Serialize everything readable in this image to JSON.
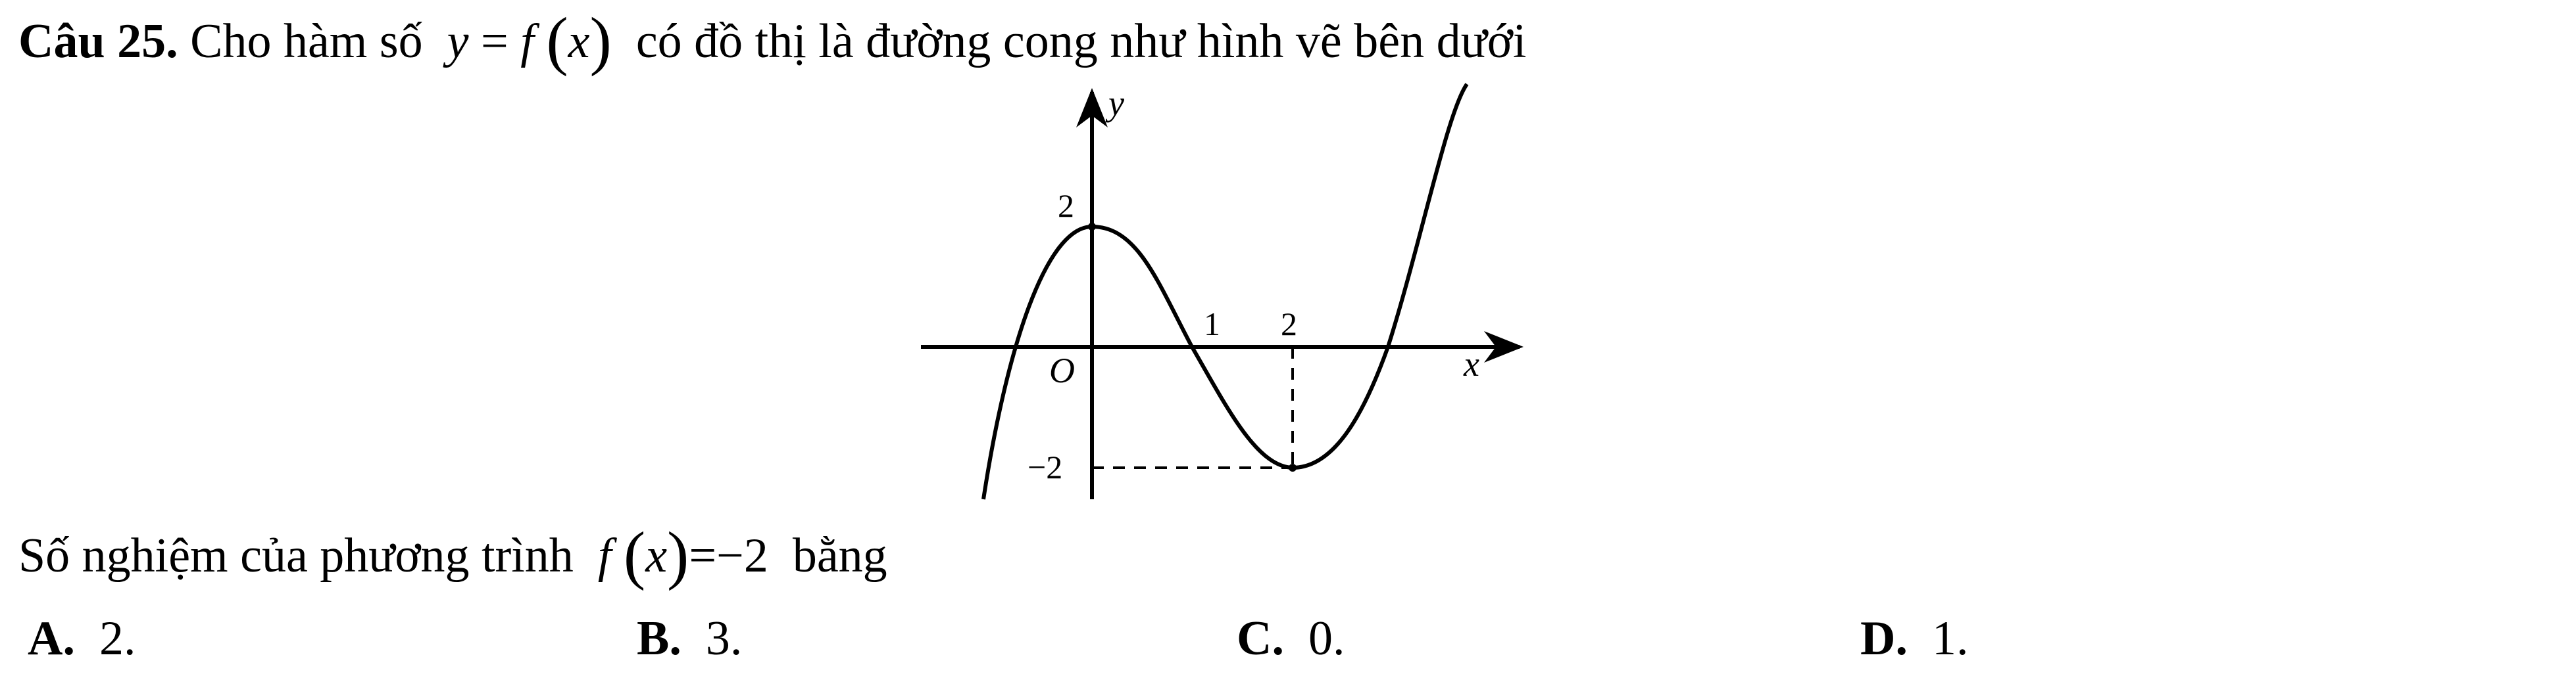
{
  "question": {
    "number": "Câu 25.",
    "intro": "Cho hàm số",
    "y": "y",
    "eq": "=",
    "f": "f",
    "lparen": "(",
    "x": "x",
    "rparen": ")",
    "rest": "có đồ thị là đường cong như hình vẽ bên dưới"
  },
  "graph": {
    "y_axis_label": "y",
    "x_axis_label": "x",
    "origin_label": "O",
    "label_y2": "2",
    "label_x1": "1",
    "label_x2": "2",
    "label_ym2": "−2",
    "curve_points": [
      {
        "x": -0.9,
        "y": -1.2
      },
      {
        "x": 0,
        "y": 2
      },
      {
        "x": 1,
        "y": 0
      },
      {
        "x": 2,
        "y": -2
      },
      {
        "x": 3.35,
        "y": 2.2
      }
    ]
  },
  "prompt": {
    "text": "Số nghiệm của phương trình",
    "f": "f",
    "lparen": "(",
    "x": "x",
    "rparen": ")",
    "eq": "=",
    "rhs": "−2",
    "tail": "bằng"
  },
  "options": [
    {
      "letter": "A.",
      "value": "2",
      "dot": "."
    },
    {
      "letter": "B.",
      "value": "3",
      "dot": "."
    },
    {
      "letter": "C.",
      "value": "0",
      "dot": "."
    },
    {
      "letter": "D.",
      "value": "1",
      "dot": "."
    }
  ]
}
